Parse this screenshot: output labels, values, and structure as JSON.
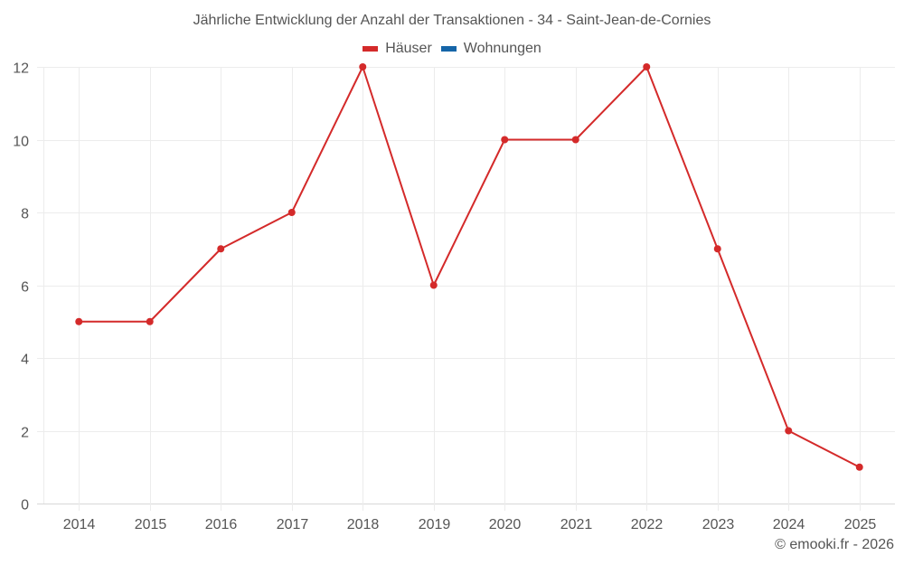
{
  "chart_data": {
    "type": "line",
    "title": "Jährliche Entwicklung der Anzahl der Transaktionen - 34 - Saint-Jean-de-Cornies",
    "xlabel": "",
    "ylabel": "",
    "categories": [
      "2014",
      "2015",
      "2016",
      "2017",
      "2018",
      "2019",
      "2020",
      "2021",
      "2022",
      "2023",
      "2024",
      "2025"
    ],
    "series": [
      {
        "name": "Häuser",
        "color": "#d42a2a",
        "values": [
          5,
          5,
          7,
          8,
          12,
          6,
          10,
          10,
          12,
          7,
          2,
          1
        ]
      },
      {
        "name": "Wohnungen",
        "color": "#1565a8",
        "values": []
      }
    ],
    "ylim": [
      0,
      12
    ],
    "yticks": [
      0,
      2,
      4,
      6,
      8,
      10,
      12
    ],
    "grid": true,
    "legend_position": "top-center"
  },
  "credit": "© emooki.fr - 2026"
}
